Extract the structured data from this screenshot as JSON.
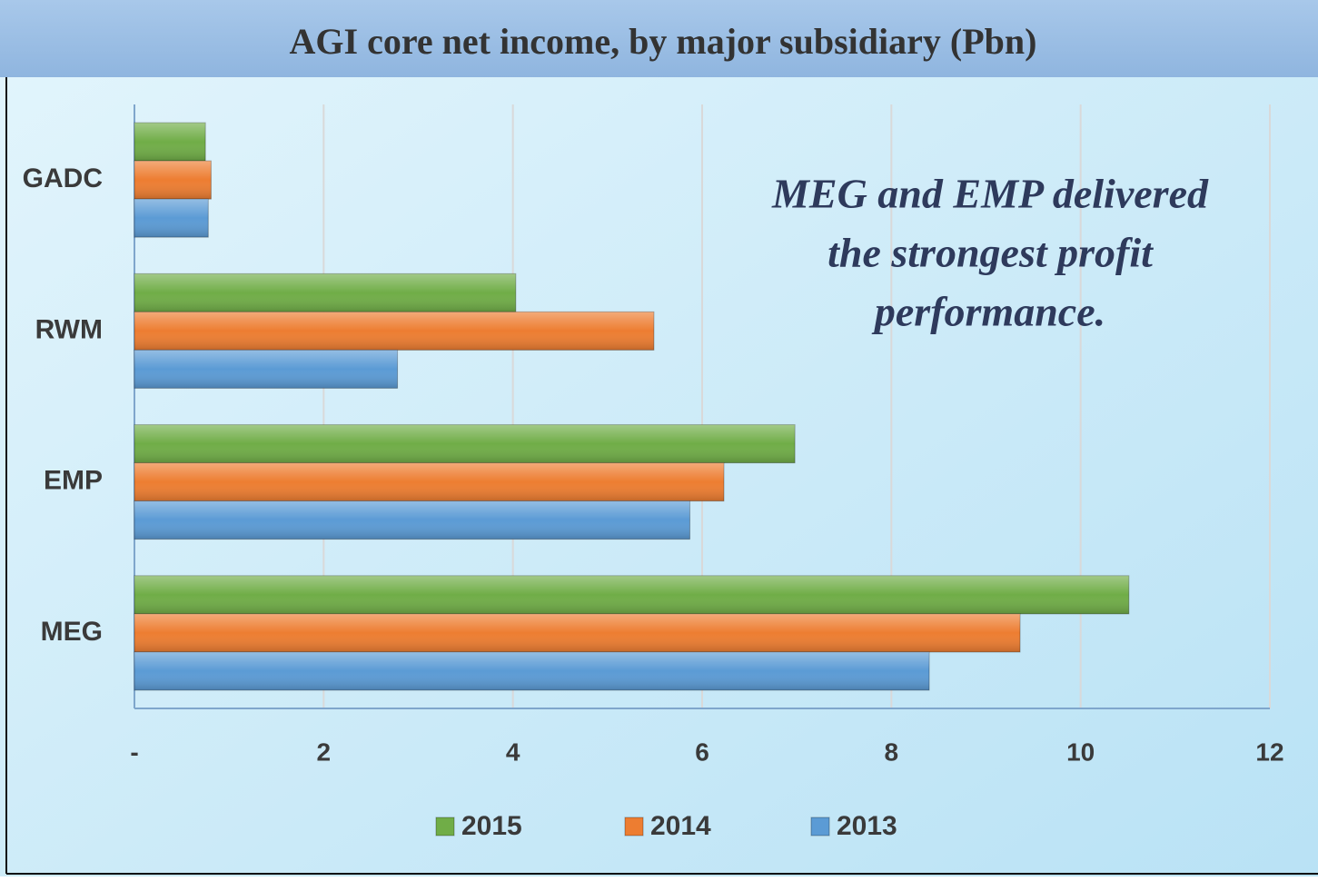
{
  "chart_data": {
    "type": "bar",
    "orientation": "horizontal",
    "title": "AGI core net income, by major subsidiary (Pbn)",
    "annotation": [
      "MEG and EMP delivered",
      "the strongest profit",
      "performance."
    ],
    "categories": [
      "GADC",
      "RWM",
      "EMP",
      "MEG"
    ],
    "series": [
      {
        "name": "2015",
        "color": "#70ad47",
        "values": [
          0.75,
          4.03,
          6.98,
          10.51
        ]
      },
      {
        "name": "2014",
        "color": "#ed7d31",
        "values": [
          0.81,
          5.49,
          6.23,
          9.36
        ]
      },
      {
        "name": "2013",
        "color": "#5b9bd5",
        "values": [
          0.78,
          2.78,
          5.87,
          8.4
        ]
      }
    ],
    "xlim": [
      0,
      12
    ],
    "xticks": [
      {
        "value": 0,
        "label": "-"
      },
      2,
      4,
      6,
      8,
      10,
      12
    ],
    "grid": true,
    "legend": "bottom"
  }
}
